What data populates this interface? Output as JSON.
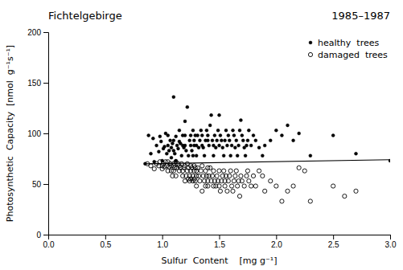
{
  "chart_data": {
    "type": "scatter",
    "title": "Fichtelgebirge",
    "subtitle": "1985–1987",
    "x_label": "Sulfur  Content    [mg g⁻¹]",
    "y_label": "Photosynthetic  Capacity  [nmol  g⁻¹s⁻¹]",
    "xlim": [
      0,
      3.0
    ],
    "ylim": [
      0,
      200
    ],
    "xticks": [
      {
        "value": 0,
        "label": "0.0"
      },
      0.5,
      {
        "value": 1.0,
        "label": "1.0"
      },
      1.5,
      {
        "value": 2.0,
        "label": "2.0"
      },
      2.5,
      {
        "value": 3.0,
        "label": "3.0"
      }
    ],
    "yticks": [
      0,
      50,
      100,
      150,
      200
    ],
    "grid": false,
    "legend": "upper-right",
    "series": [
      {
        "name": "healthy  trees",
        "color": "#000000",
        "marker": "circle",
        "x": [
          0.85,
          0.88,
          0.9,
          0.92,
          0.93,
          0.95,
          0.97,
          0.98,
          0.99,
          1.0,
          1.01,
          1.02,
          1.03,
          1.04,
          1.05,
          1.05,
          1.06,
          1.07,
          1.08,
          1.08,
          1.09,
          1.1,
          1.1,
          1.1,
          1.11,
          1.12,
          1.12,
          1.13,
          1.14,
          1.15,
          1.15,
          1.16,
          1.17,
          1.18,
          1.18,
          1.19,
          1.2,
          1.2,
          1.2,
          1.21,
          1.22,
          1.23,
          1.24,
          1.25,
          1.25,
          1.26,
          1.27,
          1.27,
          1.28,
          1.28,
          1.29,
          1.3,
          1.3,
          1.31,
          1.32,
          1.33,
          1.34,
          1.35,
          1.35,
          1.36,
          1.37,
          1.38,
          1.39,
          1.4,
          1.4,
          1.41,
          1.42,
          1.43,
          1.44,
          1.45,
          1.45,
          1.46,
          1.47,
          1.48,
          1.49,
          1.5,
          1.5,
          1.51,
          1.52,
          1.53,
          1.54,
          1.55,
          1.56,
          1.57,
          1.58,
          1.59,
          1.6,
          1.61,
          1.62,
          1.63,
          1.64,
          1.65,
          1.66,
          1.67,
          1.68,
          1.69,
          1.7,
          1.71,
          1.72,
          1.73,
          1.74,
          1.75,
          1.76,
          1.78,
          1.8,
          1.82,
          1.85,
          1.88,
          1.9,
          1.95,
          2.0,
          2.05,
          2.1,
          2.15,
          2.2,
          2.3,
          2.5,
          2.7,
          3.0
        ],
        "values": [
          70,
          98,
          80,
          95,
          72,
          88,
          82,
          97,
          92,
          73,
          85,
          87,
          100,
          80,
          88,
          98,
          83,
          93,
          76,
          86,
          90,
          136,
          83,
          93,
          80,
          97,
          73,
          88,
          85,
          92,
          103,
          90,
          78,
          88,
          98,
          86,
          112,
          98,
          88,
          83,
          126,
          78,
          93,
          98,
          88,
          83,
          103,
          78,
          93,
          88,
          98,
          78,
          88,
          98,
          86,
          93,
          103,
          88,
          98,
          86,
          78,
          93,
          103,
          98,
          93,
          88,
          108,
          118,
          93,
          78,
          88,
          98,
          86,
          93,
          103,
          88,
          118,
          98,
          93,
          86,
          78,
          93,
          103,
          88,
          98,
          93,
          78,
          88,
          103,
          98,
          86,
          93,
          78,
          88,
          103,
          113,
          98,
          93,
          86,
          78,
          88,
          93,
          103,
          88,
          98,
          93,
          86,
          78,
          88,
          93,
          103,
          98,
          108,
          93,
          100,
          78,
          98,
          80,
          73
        ]
      },
      {
        "name": "damaged  trees",
        "color": "#000000",
        "marker": "open-circle",
        "x": [
          0.87,
          0.9,
          0.93,
          0.95,
          0.97,
          0.98,
          1.0,
          1.0,
          1.01,
          1.02,
          1.03,
          1.04,
          1.05,
          1.05,
          1.06,
          1.07,
          1.08,
          1.08,
          1.09,
          1.1,
          1.1,
          1.1,
          1.11,
          1.12,
          1.12,
          1.13,
          1.14,
          1.15,
          1.15,
          1.16,
          1.17,
          1.18,
          1.18,
          1.19,
          1.2,
          1.2,
          1.21,
          1.22,
          1.22,
          1.23,
          1.23,
          1.24,
          1.24,
          1.25,
          1.25,
          1.25,
          1.26,
          1.27,
          1.27,
          1.28,
          1.28,
          1.28,
          1.29,
          1.29,
          1.3,
          1.3,
          1.3,
          1.31,
          1.32,
          1.33,
          1.34,
          1.35,
          1.35,
          1.36,
          1.37,
          1.38,
          1.38,
          1.39,
          1.4,
          1.4,
          1.4,
          1.41,
          1.42,
          1.43,
          1.44,
          1.45,
          1.45,
          1.46,
          1.47,
          1.48,
          1.49,
          1.5,
          1.5,
          1.51,
          1.52,
          1.53,
          1.54,
          1.55,
          1.55,
          1.56,
          1.57,
          1.58,
          1.59,
          1.6,
          1.61,
          1.62,
          1.63,
          1.64,
          1.65,
          1.66,
          1.67,
          1.68,
          1.69,
          1.7,
          1.72,
          1.74,
          1.75,
          1.76,
          1.78,
          1.8,
          1.82,
          1.85,
          1.88,
          1.9,
          1.95,
          2.0,
          2.05,
          2.1,
          2.15,
          2.2,
          2.25,
          2.3,
          2.5,
          2.6,
          2.7
        ],
        "values": [
          70,
          68,
          65,
          70,
          68,
          72,
          68,
          65,
          70,
          67,
          72,
          68,
          63,
          72,
          67,
          70,
          68,
          63,
          58,
          70,
          63,
          68,
          66,
          72,
          58,
          66,
          70,
          63,
          68,
          66,
          70,
          63,
          58,
          66,
          68,
          53,
          58,
          63,
          70,
          66,
          55,
          58,
          53,
          63,
          68,
          55,
          66,
          53,
          58,
          63,
          68,
          55,
          66,
          53,
          58,
          63,
          48,
          66,
          58,
          53,
          63,
          68,
          43,
          58,
          53,
          63,
          48,
          58,
          66,
          53,
          48,
          58,
          66,
          53,
          58,
          48,
          63,
          53,
          48,
          58,
          53,
          63,
          48,
          43,
          53,
          58,
          63,
          48,
          53,
          58,
          43,
          53,
          58,
          63,
          48,
          43,
          53,
          58,
          63,
          48,
          53,
          38,
          58,
          53,
          48,
          58,
          63,
          53,
          48,
          58,
          48,
          63,
          58,
          43,
          53,
          48,
          33,
          43,
          48,
          66,
          63,
          33,
          48,
          38,
          43
        ]
      },
      {
        "type": "line",
        "color": "#000000",
        "x": [
          0.85,
          3.0
        ],
        "values": [
          70,
          74
        ]
      }
    ]
  }
}
